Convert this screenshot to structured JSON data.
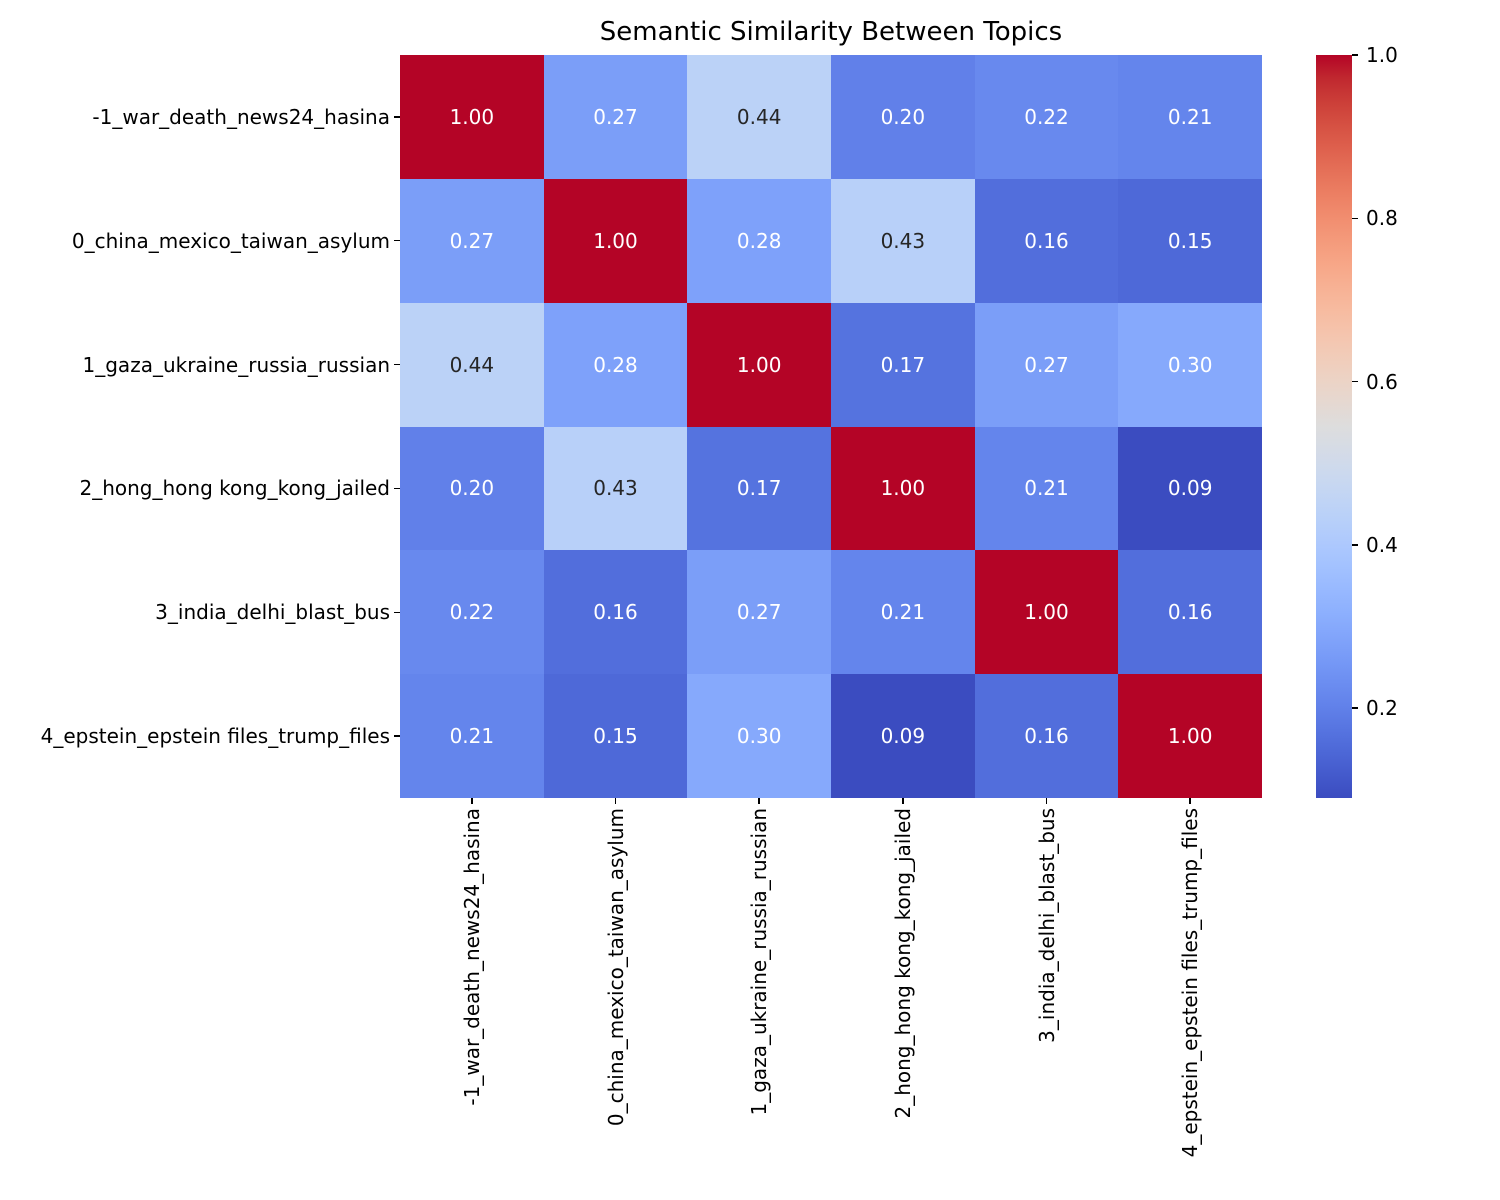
{
  "chart_data": {
    "type": "heatmap",
    "title": "Semantic Similarity Between Topics",
    "categories": [
      "-1_war_death_news24_hasina",
      "0_china_mexico_taiwan_asylum",
      "1_gaza_ukraine_russia_russian",
      "2_hong_hong kong_kong_jailed",
      "3_india_delhi_blast_bus",
      "4_epstein_epstein files_trump_files"
    ],
    "matrix": [
      [
        1.0,
        0.27,
        0.44,
        0.2,
        0.22,
        0.21
      ],
      [
        0.27,
        1.0,
        0.28,
        0.43,
        0.16,
        0.15
      ],
      [
        0.44,
        0.28,
        1.0,
        0.17,
        0.27,
        0.3
      ],
      [
        0.2,
        0.43,
        0.17,
        1.0,
        0.21,
        0.09
      ],
      [
        0.22,
        0.16,
        0.27,
        0.21,
        1.0,
        0.16
      ],
      [
        0.21,
        0.15,
        0.3,
        0.09,
        0.16,
        1.0
      ]
    ],
    "value_decimals": 2,
    "colormap": "coolwarm",
    "vmin": 0.09,
    "vmax": 1.0,
    "grid": false,
    "colorbar": {
      "position": "right",
      "tick_values": [
        1.0,
        0.8,
        0.6,
        0.4,
        0.2
      ],
      "tick_labels": [
        "1.0",
        "0.8",
        "0.6",
        "0.4",
        "0.2"
      ]
    },
    "colors": {
      "cmap_low": "#3b4cc0",
      "cmap_mid": "#dddddd",
      "cmap_high": "#b40426",
      "annotation_dark": "#262626",
      "annotation_light": "#ffffff",
      "axis_text": "#000000",
      "background": "#ffffff"
    }
  }
}
